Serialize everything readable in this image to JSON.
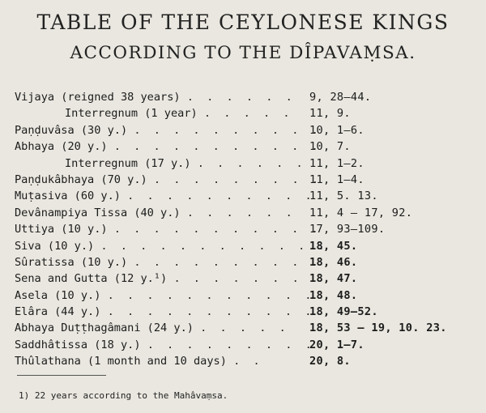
{
  "title": "TABLE OF THE CEYLONESE KINGS",
  "subtitle": "ACCORDING TO THE DÎPAVAṂSA.",
  "entries": [
    {
      "name": "Vijaya (reigned 38 years)",
      "leader": ". . . . . .",
      "ref": "9, 28—44.",
      "indent": false,
      "bold": false
    },
    {
      "name": "Interregnum (1 year)",
      "leader": ". . . . .",
      "ref": "11, 9.",
      "indent": true,
      "bold": false
    },
    {
      "name": "Paṇḍuvâsa (30 y.)",
      "leader": ". . . . . . . . . .",
      "ref": "10, 1—6.",
      "indent": false,
      "bold": false
    },
    {
      "name": "Abhaya (20 y.)",
      "leader": ". . . . . . . . . . .",
      "ref": "10, 7.",
      "indent": false,
      "bold": false
    },
    {
      "name": "Interregnum (17 y.)",
      "leader": ". . . . . .",
      "ref": "11, 1—2.",
      "indent": true,
      "bold": false
    },
    {
      "name": "Paṇḍukâbhaya (70 y.)",
      "leader": ". . . . . . . . .",
      "ref": "11, 1—4.",
      "indent": false,
      "bold": false
    },
    {
      "name": "Muṭasiva (60 y.)",
      "leader": ". . . . . . . . . .",
      "ref": "11, 5. 13.",
      "indent": false,
      "bold": false
    },
    {
      "name": "Devânampiya Tissa (40 y.)",
      "leader": ". . . . . .",
      "ref": "11, 4 — 17, 92.",
      "indent": false,
      "bold": false
    },
    {
      "name": "Uttiya (10 y.)",
      "leader": ". . . . . . . . . . .",
      "ref": "17, 93—109.",
      "indent": false,
      "bold": false
    },
    {
      "name": "Siva (10 y.)",
      "leader": ". . . . . . . . . . . .",
      "ref": "18, 45.",
      "indent": false,
      "bold": true
    },
    {
      "name": "Sûratissa (10 y.)",
      "leader": ". . . . . . . . . .",
      "ref": "18, 46.",
      "indent": false,
      "bold": true
    },
    {
      "name": "Sena and Gutta (12 y.¹)",
      "leader": ". . . . . . .",
      "ref": "18, 47.",
      "indent": false,
      "bold": true
    },
    {
      "name": "Asela (10 y.)",
      "leader": ". . . . . . . . . . .",
      "ref": "18, 48.",
      "indent": false,
      "bold": true
    },
    {
      "name": "Elâra (44 y.)",
      "leader": ". . . . . . . . . . .",
      "ref": "18, 49—52.",
      "indent": false,
      "bold": true
    },
    {
      "name": "Abhaya Duṭṭhagâmani (24 y.)",
      "leader": ". . . . .",
      "ref": "18, 53 — 19, 10. 23.",
      "indent": false,
      "bold": true
    },
    {
      "name": "Saddhâtissa (18 y.)",
      "leader": ". . . . . . . . .",
      "ref": "20, 1—7.",
      "indent": false,
      "bold": true
    },
    {
      "name": "Thûlathana (1 month and 10 days)",
      "leader": ". .",
      "ref": "20, 8.",
      "indent": false,
      "bold": true
    }
  ],
  "footnote": "1) 22 years according to the Mahâvaṃsa."
}
